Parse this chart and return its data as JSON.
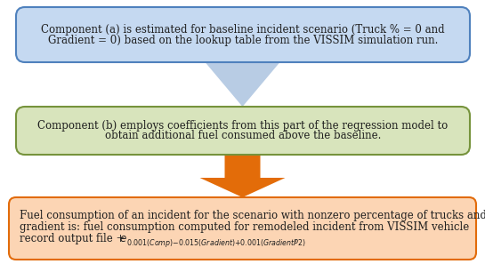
{
  "box1_text_line1": "Component (a) is estimated for baseline incident scenario (Truck % = 0 and",
  "box1_text_line2": "Gradient = 0) based on the lookup table from the VISSIM simulation run.",
  "box2_text_line1": "Component (b) employs coefficients from this part of the regression model to",
  "box2_text_line2": "obtain additional fuel consumed above the baseline.",
  "box3_text_line1": "Fuel consumption of an incident for the scenario with nonzero percentage of trucks and",
  "box3_text_line2": "gradient is: fuel consumption computed for remodeled incident from VISSIM vehicle",
  "box3_text_line3_pre": "record output file + ",
  "box3_exponent": "0.001(Comp)−0.015(Gradient)+0.001(GradientP2)",
  "box1_fill": "#c5d9f1",
  "box1_edge": "#4f81bd",
  "box2_fill": "#d8e4bc",
  "box2_edge": "#76933c",
  "box3_fill": "#fcd5b4",
  "box3_edge": "#e26b0a",
  "arrow1_fill": "#b8cce4",
  "arrow2_fill": "#e36c09",
  "bg_color": "#ffffff",
  "text_color": "#1f1f1f",
  "font_size": 8.5,
  "font_family": "DejaVu Serif"
}
